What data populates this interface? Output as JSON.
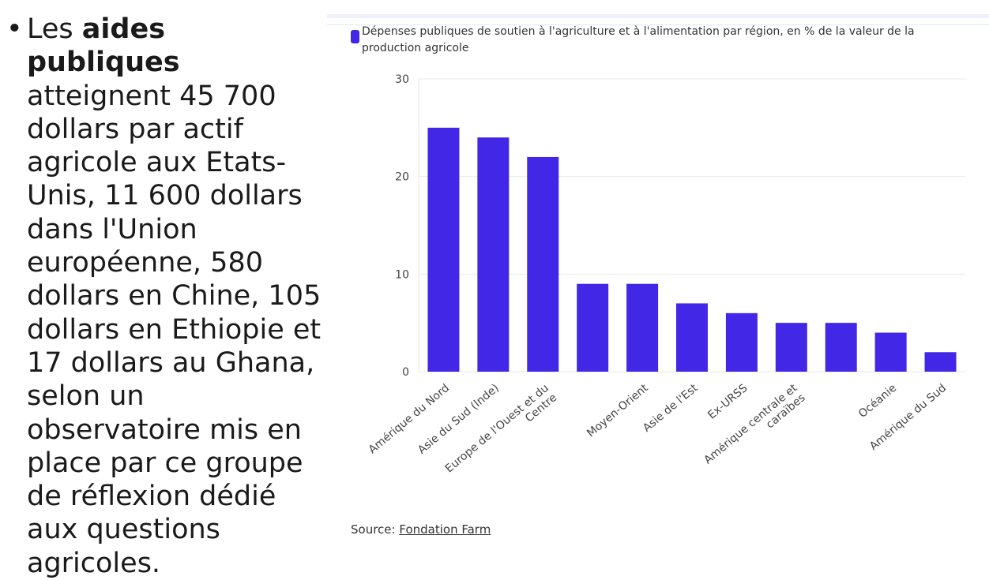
{
  "bullet": {
    "before": "Les",
    "bold": "aides publiques",
    "after": "atteignent 45 700 dollars par actif agricole aux Etats-Unis, 11 600 dollars dans l'Union européenne, 580 dollars en Chine, 105 dollars en Ethiopie et 17 dollars au Ghana, selon un observatoire mis en place par ce groupe de réflexion dédié aux questions agricoles."
  },
  "chart_data": {
    "type": "bar",
    "categories": [
      "Amérique du Nord",
      "Asie du Sud (Inde)",
      "Europe de l'Ouest et du Centre",
      null,
      "Moyen-Orient",
      "Asie de l'Est",
      "Ex-URSS",
      "Amérique centrale et caraïbes",
      null,
      "Océanie",
      "Amérique du Sud"
    ],
    "series": [
      {
        "name": "Dépenses publiques de soutien à l'agriculture et à l'alimentation par région, en % de la valeur de la production agricole",
        "color": "#4327e6",
        "values": [
          25,
          24,
          22,
          9,
          9,
          7,
          6,
          5,
          5,
          4,
          2
        ]
      }
    ],
    "ylim": [
      0,
      30
    ],
    "yticks": [
      0,
      10,
      20,
      30
    ],
    "grid": true
  },
  "source": {
    "label": "Source:",
    "link": "Fondation Farm"
  }
}
